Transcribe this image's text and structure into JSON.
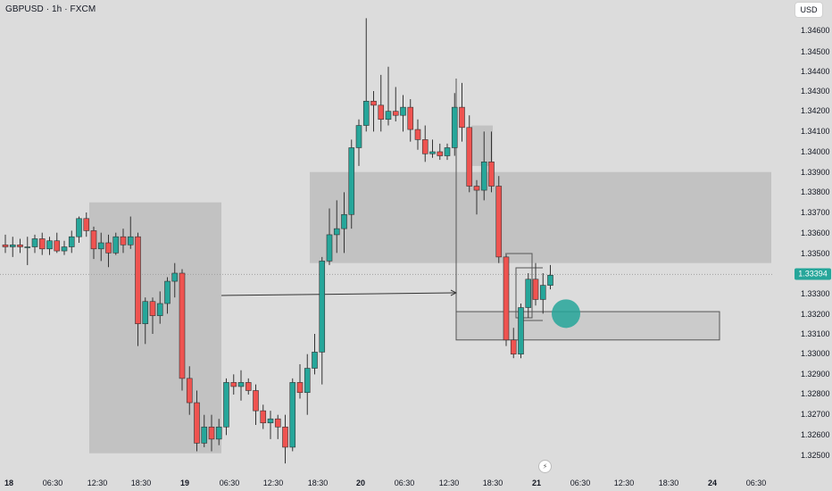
{
  "header": {
    "symbol_title": "GBPUSD · 1h · FXCM"
  },
  "toolbar": {
    "currency_label": "USD"
  },
  "colors": {
    "up": "#26a69a",
    "down": "#ef5350",
    "background": "#dcdcdc",
    "zone": "#bdbdbd",
    "target": "#26a69a"
  },
  "icons": {
    "replay": "lightning-icon"
  },
  "price_axis": {
    "current_price": "1.33394",
    "labels": [
      "1.34600",
      "1.34500",
      "1.34400",
      "1.34300",
      "1.34200",
      "1.34100",
      "1.34000",
      "1.33900",
      "1.33800",
      "1.33700",
      "1.33600",
      "1.33500",
      "1.33400",
      "1.33300",
      "1.33200",
      "1.33100",
      "1.33000",
      "1.32900",
      "1.32800",
      "1.32700",
      "1.32600",
      "1.32500"
    ]
  },
  "time_axis": {
    "labels": [
      {
        "text": "18",
        "bold": true
      },
      {
        "text": "06:30",
        "bold": false
      },
      {
        "text": "12:30",
        "bold": false
      },
      {
        "text": "18:30",
        "bold": false
      },
      {
        "text": "19",
        "bold": true
      },
      {
        "text": "06:30",
        "bold": false
      },
      {
        "text": "12:30",
        "bold": false
      },
      {
        "text": "18:30",
        "bold": false
      },
      {
        "text": "20",
        "bold": true
      },
      {
        "text": "06:30",
        "bold": false
      },
      {
        "text": "12:30",
        "bold": false
      },
      {
        "text": "18:30",
        "bold": false
      },
      {
        "text": "21",
        "bold": true
      },
      {
        "text": "06:30",
        "bold": false
      },
      {
        "text": "12:30",
        "bold": false
      },
      {
        "text": "18:30",
        "bold": false
      },
      {
        "text": "24",
        "bold": true
      },
      {
        "text": "06:30",
        "bold": false
      }
    ]
  },
  "chart_data": {
    "type": "candlestick",
    "symbol": "GBPUSD",
    "interval": "1h",
    "y_range": [
      1.3245,
      1.347
    ],
    "current_price": 1.33394,
    "candles": [
      {
        "o": 1.3354,
        "h": 1.3359,
        "l": 1.335,
        "c": 1.3353
      },
      {
        "o": 1.3353,
        "h": 1.3358,
        "l": 1.3348,
        "c": 1.3354
      },
      {
        "o": 1.3354,
        "h": 1.3357,
        "l": 1.335,
        "c": 1.3353
      },
      {
        "o": 1.3353,
        "h": 1.3358,
        "l": 1.3344,
        "c": 1.3353
      },
      {
        "o": 1.3353,
        "h": 1.3359,
        "l": 1.335,
        "c": 1.3357
      },
      {
        "o": 1.3357,
        "h": 1.336,
        "l": 1.3349,
        "c": 1.3352
      },
      {
        "o": 1.3352,
        "h": 1.3358,
        "l": 1.3349,
        "c": 1.3356
      },
      {
        "o": 1.3356,
        "h": 1.336,
        "l": 1.335,
        "c": 1.3351
      },
      {
        "o": 1.3351,
        "h": 1.3356,
        "l": 1.3349,
        "c": 1.3353
      },
      {
        "o": 1.3353,
        "h": 1.3361,
        "l": 1.335,
        "c": 1.3358
      },
      {
        "o": 1.3358,
        "h": 1.3368,
        "l": 1.3355,
        "c": 1.3367
      },
      {
        "o": 1.3367,
        "h": 1.337,
        "l": 1.3358,
        "c": 1.3361
      },
      {
        "o": 1.3361,
        "h": 1.3363,
        "l": 1.3347,
        "c": 1.3352
      },
      {
        "o": 1.3352,
        "h": 1.336,
        "l": 1.3346,
        "c": 1.3355
      },
      {
        "o": 1.3355,
        "h": 1.3359,
        "l": 1.3343,
        "c": 1.335
      },
      {
        "o": 1.335,
        "h": 1.336,
        "l": 1.3349,
        "c": 1.3358
      },
      {
        "o": 1.3358,
        "h": 1.3362,
        "l": 1.335,
        "c": 1.3354
      },
      {
        "o": 1.3354,
        "h": 1.3368,
        "l": 1.3352,
        "c": 1.3358
      },
      {
        "o": 1.3358,
        "h": 1.336,
        "l": 1.3304,
        "c": 1.3315
      },
      {
        "o": 1.3315,
        "h": 1.3328,
        "l": 1.3305,
        "c": 1.3326
      },
      {
        "o": 1.3326,
        "h": 1.3328,
        "l": 1.331,
        "c": 1.3319
      },
      {
        "o": 1.3319,
        "h": 1.3331,
        "l": 1.3315,
        "c": 1.3325
      },
      {
        "o": 1.3325,
        "h": 1.3338,
        "l": 1.332,
        "c": 1.3336
      },
      {
        "o": 1.3336,
        "h": 1.3345,
        "l": 1.3328,
        "c": 1.334
      },
      {
        "o": 1.334,
        "h": 1.3342,
        "l": 1.3282,
        "c": 1.3288
      },
      {
        "o": 1.3288,
        "h": 1.3294,
        "l": 1.327,
        "c": 1.3276
      },
      {
        "o": 1.3276,
        "h": 1.3282,
        "l": 1.3252,
        "c": 1.3256
      },
      {
        "o": 1.3256,
        "h": 1.327,
        "l": 1.3254,
        "c": 1.3264
      },
      {
        "o": 1.3264,
        "h": 1.327,
        "l": 1.3252,
        "c": 1.3258
      },
      {
        "o": 1.3258,
        "h": 1.3268,
        "l": 1.3255,
        "c": 1.3264
      },
      {
        "o": 1.3264,
        "h": 1.3288,
        "l": 1.326,
        "c": 1.3286
      },
      {
        "o": 1.3286,
        "h": 1.329,
        "l": 1.328,
        "c": 1.3284
      },
      {
        "o": 1.3284,
        "h": 1.3292,
        "l": 1.3277,
        "c": 1.3286
      },
      {
        "o": 1.3286,
        "h": 1.3288,
        "l": 1.328,
        "c": 1.3282
      },
      {
        "o": 1.3282,
        "h": 1.3285,
        "l": 1.3265,
        "c": 1.3272
      },
      {
        "o": 1.3272,
        "h": 1.3275,
        "l": 1.3263,
        "c": 1.3266
      },
      {
        "o": 1.3266,
        "h": 1.3272,
        "l": 1.3258,
        "c": 1.3268
      },
      {
        "o": 1.3268,
        "h": 1.327,
        "l": 1.3258,
        "c": 1.3264
      },
      {
        "o": 1.3264,
        "h": 1.327,
        "l": 1.3246,
        "c": 1.3254
      },
      {
        "o": 1.3254,
        "h": 1.3288,
        "l": 1.3252,
        "c": 1.3286
      },
      {
        "o": 1.3286,
        "h": 1.3295,
        "l": 1.3278,
        "c": 1.3281
      },
      {
        "o": 1.3281,
        "h": 1.33,
        "l": 1.327,
        "c": 1.3293
      },
      {
        "o": 1.3293,
        "h": 1.331,
        "l": 1.329,
        "c": 1.3301
      },
      {
        "o": 1.3301,
        "h": 1.3348,
        "l": 1.3285,
        "c": 1.3346
      },
      {
        "o": 1.3346,
        "h": 1.3372,
        "l": 1.3344,
        "c": 1.3359
      },
      {
        "o": 1.3359,
        "h": 1.3376,
        "l": 1.335,
        "c": 1.3362
      },
      {
        "o": 1.3362,
        "h": 1.338,
        "l": 1.335,
        "c": 1.3369
      },
      {
        "o": 1.3369,
        "h": 1.3406,
        "l": 1.3362,
        "c": 1.3402
      },
      {
        "o": 1.3402,
        "h": 1.3416,
        "l": 1.3393,
        "c": 1.3413
      },
      {
        "o": 1.3413,
        "h": 1.3466,
        "l": 1.341,
        "c": 1.3425
      },
      {
        "o": 1.3425,
        "h": 1.343,
        "l": 1.341,
        "c": 1.3423
      },
      {
        "o": 1.3423,
        "h": 1.3438,
        "l": 1.341,
        "c": 1.3416
      },
      {
        "o": 1.3416,
        "h": 1.3442,
        "l": 1.3413,
        "c": 1.342
      },
      {
        "o": 1.342,
        "h": 1.3432,
        "l": 1.3415,
        "c": 1.3418
      },
      {
        "o": 1.3418,
        "h": 1.3428,
        "l": 1.341,
        "c": 1.3422
      },
      {
        "o": 1.3422,
        "h": 1.3426,
        "l": 1.3405,
        "c": 1.3411
      },
      {
        "o": 1.3411,
        "h": 1.3416,
        "l": 1.3401,
        "c": 1.3406
      },
      {
        "o": 1.3406,
        "h": 1.3413,
        "l": 1.3395,
        "c": 1.3399
      },
      {
        "o": 1.3399,
        "h": 1.3406,
        "l": 1.3397,
        "c": 1.34
      },
      {
        "o": 1.34,
        "h": 1.3404,
        "l": 1.3396,
        "c": 1.3398
      },
      {
        "o": 1.3398,
        "h": 1.3404,
        "l": 1.3396,
        "c": 1.3402
      },
      {
        "o": 1.3402,
        "h": 1.3429,
        "l": 1.3398,
        "c": 1.3422
      },
      {
        "o": 1.3422,
        "h": 1.3434,
        "l": 1.3405,
        "c": 1.3412
      },
      {
        "o": 1.3412,
        "h": 1.3418,
        "l": 1.338,
        "c": 1.3383
      },
      {
        "o": 1.3383,
        "h": 1.3386,
        "l": 1.3369,
        "c": 1.3381
      },
      {
        "o": 1.3381,
        "h": 1.341,
        "l": 1.3376,
        "c": 1.3395
      },
      {
        "o": 1.3395,
        "h": 1.341,
        "l": 1.338,
        "c": 1.3383
      },
      {
        "o": 1.3383,
        "h": 1.3388,
        "l": 1.3345,
        "c": 1.3348
      },
      {
        "o": 1.3348,
        "h": 1.335,
        "l": 1.3304,
        "c": 1.3307
      },
      {
        "o": 1.3307,
        "h": 1.3313,
        "l": 1.3298,
        "c": 1.33
      },
      {
        "o": 1.33,
        "h": 1.3325,
        "l": 1.3298,
        "c": 1.3323
      },
      {
        "o": 1.3323,
        "h": 1.334,
        "l": 1.3318,
        "c": 1.3337
      },
      {
        "o": 1.3337,
        "h": 1.3345,
        "l": 1.3324,
        "c": 1.3327
      },
      {
        "o": 1.3327,
        "h": 1.334,
        "l": 1.332,
        "c": 1.3334
      },
      {
        "o": 1.3334,
        "h": 1.3344,
        "l": 1.3332,
        "c": 1.3339
      }
    ],
    "zones": [
      {
        "name": "range-box-18",
        "price_top": 1.3375,
        "price_bottom": 1.3251
      },
      {
        "name": "supply-zone",
        "price_top": 1.339,
        "price_bottom": 1.3345
      },
      {
        "name": "small-range-box",
        "price_top": 1.3413,
        "price_bottom": 1.3393
      },
      {
        "name": "demand-zone",
        "price_top": 1.3321,
        "price_bottom": 1.3307
      }
    ],
    "target_price": 1.332
  }
}
